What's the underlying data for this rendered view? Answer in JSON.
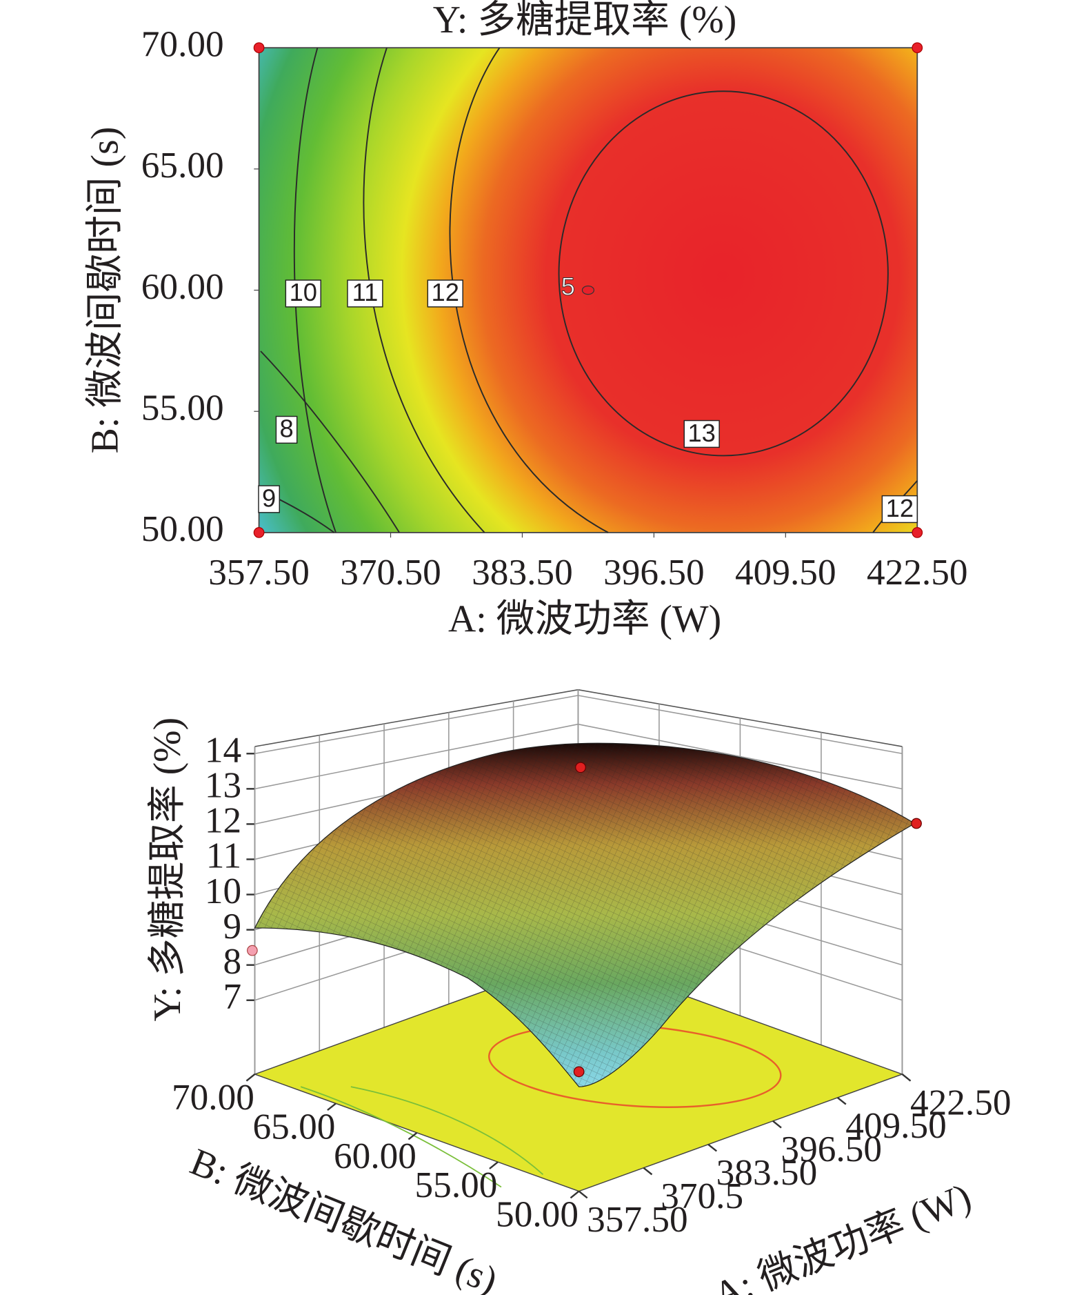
{
  "chart_data": [
    {
      "type": "contour",
      "title": "Y: 多糖提取率 (%)",
      "xlabel": "A: 微波功率 (W)",
      "ylabel": "B: 微波间歇时间 (s)",
      "xlim": [
        357.5,
        422.5
      ],
      "xticks": [
        {
          "value": 357.5,
          "label": "357.50"
        },
        {
          "value": 370.5,
          "label": "370.50"
        },
        {
          "value": 383.5,
          "label": "383.50"
        },
        {
          "value": 396.5,
          "label": "396.50"
        },
        {
          "value": 409.5,
          "label": "409.50"
        },
        {
          "value": 422.5,
          "label": "422.50"
        }
      ],
      "ylim": [
        50,
        70
      ],
      "yticks": [
        {
          "value": 50,
          "label": "50.00"
        },
        {
          "value": 55,
          "label": "55.00"
        },
        {
          "value": 60,
          "label": "60.00"
        },
        {
          "value": 65,
          "label": "65.00"
        },
        {
          "value": 70,
          "label": "70.00"
        }
      ],
      "contour_levels": [
        8,
        9,
        10,
        11,
        12,
        13,
        12
      ],
      "points": {
        "x": [
          357.5,
          422.5,
          357.5,
          422.5,
          390
        ],
        "y": [
          70,
          70,
          50,
          50,
          60
        ]
      },
      "annotation": "5"
    },
    {
      "type": "surface3d",
      "zlabel": "Y: 多糖提取率 (%)",
      "xlabel": "A: 微波功率 (W)",
      "ylabel": "B: 微波间歇时间 (s)",
      "xlim": [
        357.5,
        422.5
      ],
      "xticks": [
        {
          "value": 357.5,
          "label": "357.50"
        },
        370.5,
        {
          "value": 383.5,
          "label": "383.50"
        },
        {
          "value": 396.5,
          "label": "396.50"
        },
        {
          "value": 409.5,
          "label": "409.50"
        },
        {
          "value": 422.5,
          "label": "422.50"
        }
      ],
      "ylim": [
        50,
        70
      ],
      "yticks": [
        {
          "value": 50,
          "label": "50.00"
        },
        {
          "value": 55,
          "label": "55.00"
        },
        {
          "value": 60,
          "label": "60.00"
        },
        {
          "value": 65,
          "label": "65.00"
        },
        {
          "value": 70,
          "label": "70.00"
        }
      ],
      "zlim": [
        4.9,
        14.2
      ],
      "zticks": [
        7,
        8,
        9,
        10,
        11,
        12,
        13,
        14
      ]
    }
  ]
}
